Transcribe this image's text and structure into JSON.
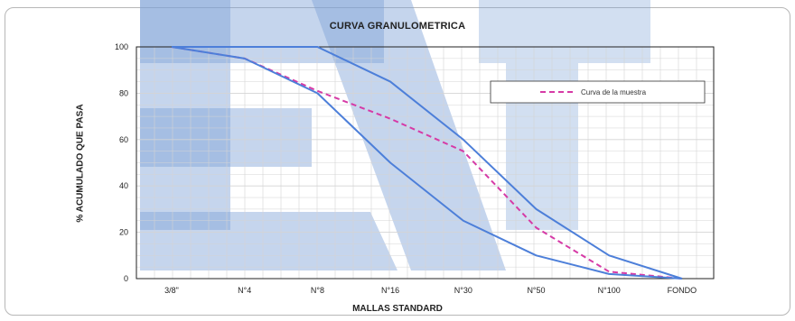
{
  "chart_data": {
    "type": "line",
    "title": "CURVA GRANULOMETRICA",
    "xlabel": "MALLAS STANDARD",
    "ylabel": "% ACUMULADO QUE PASA",
    "categories": [
      "3/8\"",
      "N°4",
      "N°8",
      "N°16",
      "N°30",
      "N°50",
      "N°100",
      "FONDO"
    ],
    "ylim": [
      0,
      100
    ],
    "yticks": [
      0,
      20,
      40,
      60,
      80,
      100
    ],
    "grid": true,
    "legend_position": "top-right",
    "series": [
      {
        "name": "Curva de la muestra",
        "style": "dashed",
        "color": "#d63aa6",
        "values": [
          100,
          95,
          81,
          69,
          55,
          22,
          3,
          0
        ]
      },
      {
        "style": "solid",
        "color": "#4d7fd9",
        "values": [
          100,
          100,
          100,
          85,
          60,
          30,
          10,
          0
        ]
      },
      {
        "style": "solid",
        "color": "#4d7fd9",
        "values": [
          100,
          95,
          80,
          50,
          25,
          10,
          2,
          0
        ]
      }
    ]
  },
  "colors": {
    "grid": "#d4d4d4",
    "axis": "#222222",
    "watermark": "#7fa2d6"
  }
}
